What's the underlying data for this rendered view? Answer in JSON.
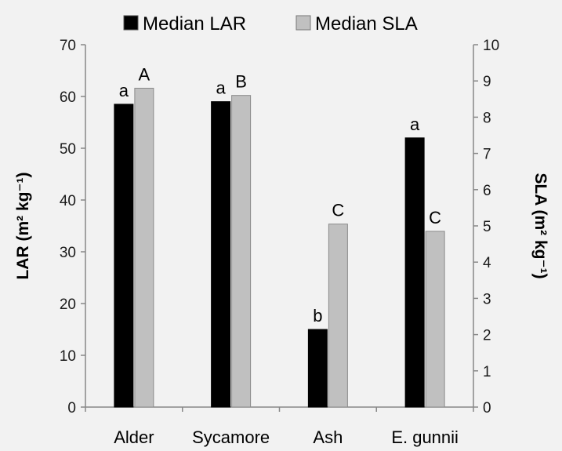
{
  "chart_data": {
    "type": "bar",
    "categories": [
      "Alder",
      "Sycamore",
      "Ash",
      "E. gunnii"
    ],
    "series": [
      {
        "name": "Median LAR",
        "axis": "left",
        "color": "#000000",
        "values": [
          58.5,
          59,
          15,
          52
        ],
        "labels": [
          "a",
          "a",
          "b",
          "a"
        ]
      },
      {
        "name": "Median SLA",
        "axis": "right",
        "color": "#c0c0c0",
        "values": [
          8.8,
          8.6,
          5.05,
          4.85
        ],
        "labels": [
          "A",
          "B",
          "C",
          "C"
        ]
      }
    ],
    "y_left": {
      "label": "LAR (m² kg⁻¹)",
      "ylim": [
        0,
        70
      ],
      "ticks": [
        "0",
        "10",
        "20",
        "30",
        "40",
        "50",
        "60",
        "70"
      ]
    },
    "y_right": {
      "label": "SLA (m² kg⁻¹)",
      "ylim": [
        0,
        10
      ],
      "ticks": [
        "0",
        "1",
        "2",
        "3",
        "4",
        "5",
        "6",
        "7",
        "8",
        "9",
        "10"
      ]
    },
    "legend_position": "top",
    "grid": false
  }
}
